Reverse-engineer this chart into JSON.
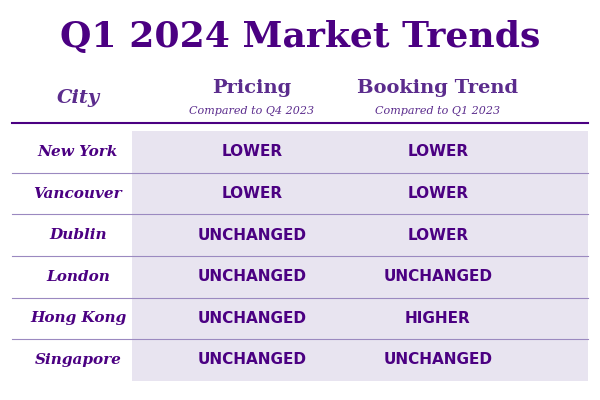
{
  "title": "Q1 2024 Market Trends",
  "title_color": "#4B0082",
  "title_fontsize": 26,
  "col_header_pricing": "Pricing",
  "col_header_booking": "Booking Trend",
  "col_sub_pricing": "Compared to Q4 2023",
  "col_sub_booking": "Compared to Q1 2023",
  "col_header_city": "City",
  "col_header_color": "#5B2C8D",
  "col_header_fontsize": 14,
  "col_sub_fontsize": 8,
  "city_fontsize": 11,
  "value_fontsize": 11,
  "rows": [
    {
      "city": "New York",
      "pricing": "LOWER",
      "booking": "LOWER"
    },
    {
      "city": "Vancouver",
      "pricing": "LOWER",
      "booking": "LOWER"
    },
    {
      "city": "Dublin",
      "pricing": "UNCHANGED",
      "booking": "LOWER"
    },
    {
      "city": "London",
      "pricing": "UNCHANGED",
      "booking": "UNCHANGED"
    },
    {
      "city": "Hong Kong",
      "pricing": "UNCHANGED",
      "booking": "HIGHER"
    },
    {
      "city": "Singapore",
      "pricing": "UNCHANGED",
      "booking": "UNCHANGED"
    }
  ],
  "row_bg_color": "#E8E4F0",
  "row_line_color": "#9B89C0",
  "header_line_color": "#4B0082",
  "city_color": "#4B0082",
  "value_color": "#4B0082",
  "bg_color": "#FFFFFF"
}
